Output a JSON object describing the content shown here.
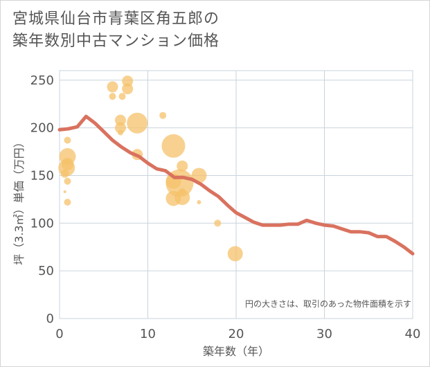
{
  "chart_data": {
    "type": "scatter",
    "title_lines": [
      "宮城県仙台市青葉区角五郎の",
      "築年数別中古マンション価格"
    ],
    "xlabel": "築年数（年）",
    "ylabel": "坪（3.3㎡）単価（万円）",
    "xlim": [
      0,
      40
    ],
    "ylim": [
      0,
      260
    ],
    "x_ticks": [
      0,
      10,
      20,
      30,
      40
    ],
    "y_ticks": [
      0,
      50,
      100,
      150,
      200,
      250
    ],
    "grid": true,
    "note": "円の大きさは、取引のあった物件面積を示す",
    "colors": {
      "bubble": "#f5c26b",
      "line": "#d9725f",
      "grid": "#c9d3dd",
      "text": "#555555"
    },
    "series": [
      {
        "name": "transactions",
        "type": "bubble",
        "points": [
          {
            "x": 0.6,
            "y": 152,
            "s": 6
          },
          {
            "x": 0.8,
            "y": 158,
            "s": 12
          },
          {
            "x": 0.9,
            "y": 162,
            "s": 9
          },
          {
            "x": 0.9,
            "y": 170,
            "s": 12
          },
          {
            "x": 0.9,
            "y": 144,
            "s": 5
          },
          {
            "x": 0.9,
            "y": 122,
            "s": 5
          },
          {
            "x": 0.9,
            "y": 187,
            "s": 5
          },
          {
            "x": 0.6,
            "y": 133,
            "s": 2
          },
          {
            "x": 6.0,
            "y": 243,
            "s": 8
          },
          {
            "x": 6.0,
            "y": 233,
            "s": 5
          },
          {
            "x": 7.1,
            "y": 233,
            "s": 5
          },
          {
            "x": 7.7,
            "y": 249,
            "s": 8
          },
          {
            "x": 7.7,
            "y": 241,
            "s": 8
          },
          {
            "x": 6.9,
            "y": 208,
            "s": 8
          },
          {
            "x": 6.9,
            "y": 200,
            "s": 8
          },
          {
            "x": 6.9,
            "y": 195,
            "s": 4
          },
          {
            "x": 8.8,
            "y": 205,
            "s": 15
          },
          {
            "x": 8.8,
            "y": 172,
            "s": 8
          },
          {
            "x": 11.7,
            "y": 213,
            "s": 5
          },
          {
            "x": 12.9,
            "y": 181,
            "s": 17
          },
          {
            "x": 12.9,
            "y": 144,
            "s": 11
          },
          {
            "x": 12.9,
            "y": 126,
            "s": 11
          },
          {
            "x": 13.6,
            "y": 142,
            "s": 20
          },
          {
            "x": 13.9,
            "y": 127,
            "s": 11
          },
          {
            "x": 13.9,
            "y": 160,
            "s": 8
          },
          {
            "x": 13.9,
            "y": 133,
            "s": 5
          },
          {
            "x": 15.8,
            "y": 150,
            "s": 11
          },
          {
            "x": 15.8,
            "y": 122,
            "s": 3
          },
          {
            "x": 17.9,
            "y": 100,
            "s": 5
          },
          {
            "x": 19.9,
            "y": 68,
            "s": 11
          }
        ]
      },
      {
        "name": "average",
        "type": "line",
        "x": [
          0,
          1,
          2,
          3,
          4,
          5,
          6,
          7,
          8,
          9,
          10,
          11,
          12,
          13,
          14,
          15,
          16,
          17,
          18,
          19,
          20,
          21,
          22,
          23,
          24,
          25,
          26,
          27,
          28,
          29,
          30,
          31,
          32,
          33,
          34,
          35,
          36,
          37,
          38,
          39,
          40
        ],
        "y": [
          198,
          199,
          201,
          212,
          205,
          196,
          187,
          180,
          174,
          170,
          163,
          157,
          155,
          148,
          148,
          146,
          141,
          134,
          128,
          119,
          111,
          106,
          101,
          98,
          98,
          98,
          99,
          99,
          103,
          100,
          98,
          97,
          94,
          91,
          91,
          90,
          86,
          86,
          81,
          75,
          68
        ]
      }
    ]
  }
}
